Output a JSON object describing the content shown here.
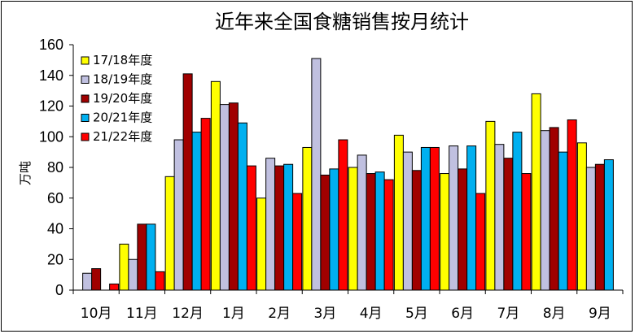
{
  "chart_data": {
    "type": "bar",
    "title": "近年来全国食糖销售按月统计",
    "ylabel": "万吨",
    "xlabel": "",
    "ylim": [
      0,
      160
    ],
    "yticks": [
      0,
      20,
      40,
      60,
      80,
      100,
      120,
      140,
      160
    ],
    "grid": false,
    "legend_position": "top-left",
    "categories": [
      "10月",
      "11月",
      "12月",
      "1月",
      "2月",
      "3月",
      "4月",
      "5月",
      "6月",
      "7月",
      "8月",
      "9月"
    ],
    "series": [
      {
        "name": "17/18年度",
        "color": "#FFFF00",
        "values": [
          null,
          30,
          74,
          136,
          60,
          93,
          80,
          101,
          76,
          110,
          128,
          96
        ]
      },
      {
        "name": "18/19年度",
        "color": "#C0C0E0",
        "values": [
          11,
          20,
          98,
          121,
          86,
          151,
          88,
          90,
          94,
          95,
          104,
          80
        ]
      },
      {
        "name": "19/20年度",
        "color": "#A00000",
        "values": [
          14,
          43,
          141,
          122,
          81,
          75,
          76,
          78,
          79,
          86,
          106,
          82
        ]
      },
      {
        "name": "20/21年度",
        "color": "#00B0F0",
        "values": [
          null,
          43,
          103,
          109,
          82,
          79,
          77,
          93,
          94,
          103,
          90,
          85
        ]
      },
      {
        "name": "21/22年度",
        "color": "#FF0000",
        "values": [
          4,
          12,
          112,
          81,
          63,
          98,
          72,
          93,
          63,
          76,
          111,
          null
        ]
      }
    ]
  }
}
